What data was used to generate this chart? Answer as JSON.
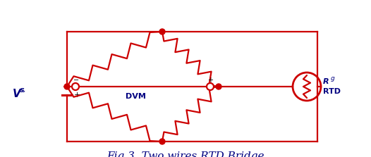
{
  "bg_color": "#ffffff",
  "circuit_color": "#cc0000",
  "title": "Fig.3. Two wires RTD Bridge",
  "title_fontsize": 11,
  "title_color": "#000080",
  "dvm_label": "DVM",
  "rtd_label": "RTD",
  "rg_label": "R",
  "rg_sub": "g",
  "fig_width": 5.26,
  "fig_height": 2.23,
  "dpi": 100
}
